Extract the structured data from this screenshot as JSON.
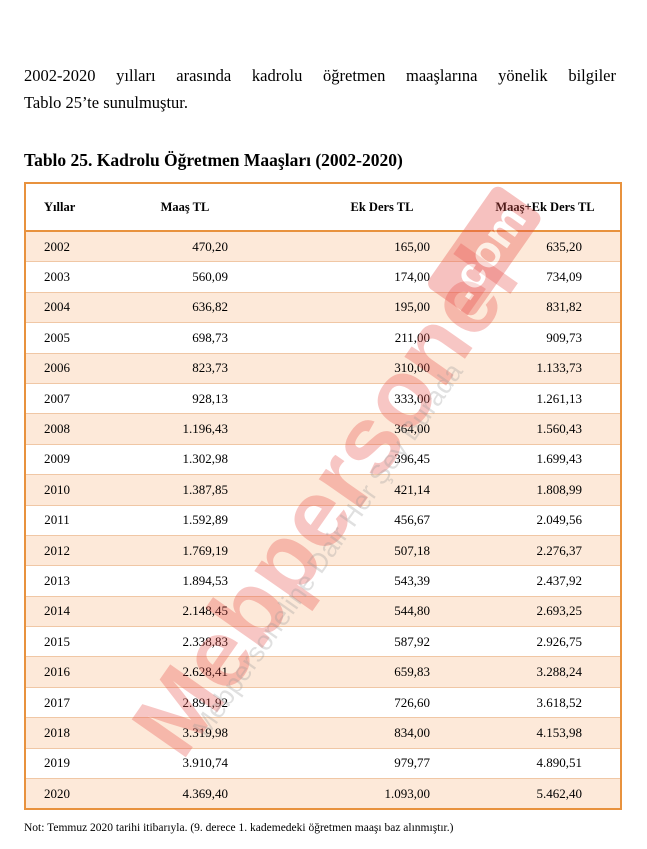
{
  "intro": {
    "line1": "2002-2020 yılları arasında kadrolu öğretmen maaşlarına yönelik bilgiler",
    "line2": "Tablo 25’te sunulmuştur."
  },
  "caption": "Tablo 25. Kadrolu Öğretmen Maaşları (2002-2020)",
  "table": {
    "headers": [
      "Yıllar",
      "Maaş TL",
      "Ek Ders TL",
      "Maaş+Ek Ders TL"
    ],
    "rows": [
      [
        "2002",
        "470,20",
        "165,00",
        "635,20"
      ],
      [
        "2003",
        "560,09",
        "174,00",
        "734,09"
      ],
      [
        "2004",
        "636,82",
        "195,00",
        "831,82"
      ],
      [
        "2005",
        "698,73",
        "211,00",
        "909,73"
      ],
      [
        "2006",
        "823,73",
        "310,00",
        "1.133,73"
      ],
      [
        "2007",
        "928,13",
        "333,00",
        "1.261,13"
      ],
      [
        "2008",
        "1.196,43",
        "364,00",
        "1.560,43"
      ],
      [
        "2009",
        "1.302,98",
        "396,45",
        "1.699,43"
      ],
      [
        "2010",
        "1.387,85",
        "421,14",
        "1.808,99"
      ],
      [
        "2011",
        "1.592,89",
        "456,67",
        "2.049,56"
      ],
      [
        "2012",
        "1.769,19",
        "507,18",
        "2.276,37"
      ],
      [
        "2013",
        "1.894,53",
        "543,39",
        "2.437,92"
      ],
      [
        "2014",
        "2.148,45",
        "544,80",
        "2.693,25"
      ],
      [
        "2015",
        "2.338,83",
        "587,92",
        "2.926,75"
      ],
      [
        "2016",
        "2.628,41",
        "659,83",
        "3.288,24"
      ],
      [
        "2017",
        "2.891,92",
        "726,60",
        "3.618,52"
      ],
      [
        "2018",
        "3.319,98",
        "834,00",
        "4.153,98"
      ],
      [
        "2019",
        "3.910,74",
        "979,77",
        "4.890,51"
      ],
      [
        "2020",
        "4.369,40",
        "1.093,00",
        "5.462,40"
      ]
    ]
  },
  "note": "Not:  Temmuz 2020 tarihi itibarıyla.  (9. derece 1. kademedeki öğretmen maaşı baz alınmıştır.)",
  "watermark": {
    "brand": "Mebpersonel",
    "domain": ".com",
    "tagline": "Mebpersoneline Dair Her Şey Burada"
  },
  "colors": {
    "border": "#e8923e",
    "row_shade": "#fde9d9",
    "watermark_red": "#e8504a",
    "watermark_grey": "#9a9a9a"
  }
}
